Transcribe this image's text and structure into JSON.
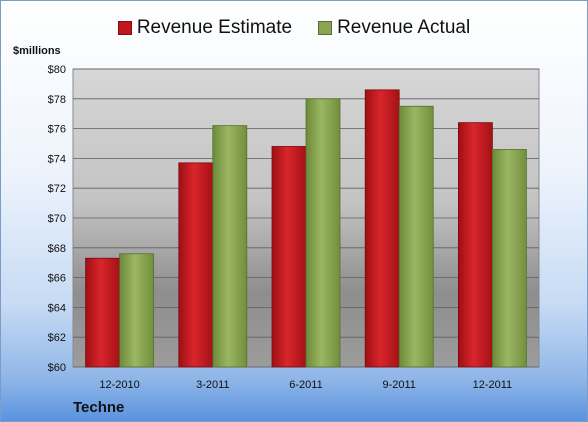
{
  "colors": {
    "estimate": "#c0161c",
    "actual": "#8aa550"
  },
  "company": "Techne",
  "y_units_label": "$millions",
  "chart_data": {
    "type": "bar",
    "title": "",
    "categories": [
      "12-2010",
      "3-2011",
      "6-2011",
      "9-2011",
      "12-2011"
    ],
    "series": [
      {
        "name": "Revenue Estimate",
        "values": [
          67.3,
          73.7,
          74.8,
          78.6,
          76.4
        ]
      },
      {
        "name": "Revenue Actual",
        "values": [
          67.6,
          76.2,
          78.0,
          77.5,
          74.6
        ]
      }
    ],
    "ylim": [
      60,
      80
    ],
    "yticks": [
      60,
      62,
      64,
      66,
      68,
      70,
      72,
      74,
      76,
      78,
      80
    ],
    "ytick_labels": [
      "$60",
      "$62",
      "$64",
      "$66",
      "$68",
      "$70",
      "$72",
      "$74",
      "$76",
      "$78",
      "$80"
    ],
    "grid": true,
    "legend": "top"
  }
}
